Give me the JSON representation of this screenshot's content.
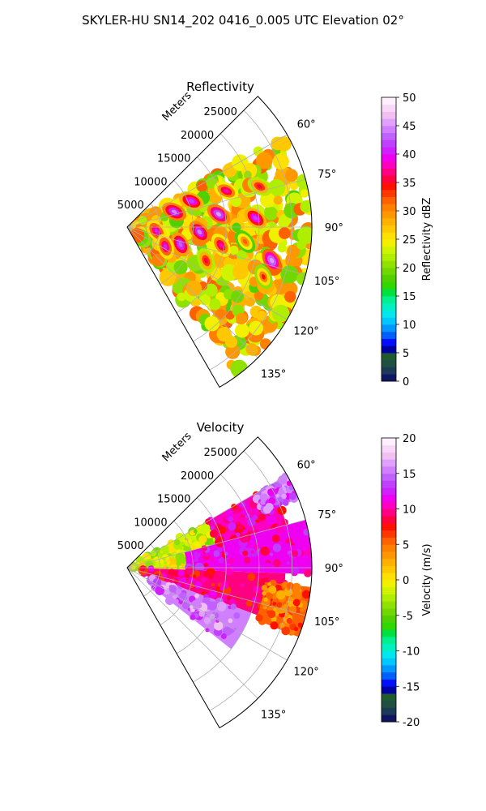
{
  "figure_title": "SKYLER-HU  SN14_202  0416_0.005 UTC Elevation 02°",
  "chart_data": [
    {
      "type": "heatmap",
      "subtype": "radar-ppi-sector",
      "title": "Reflectivity",
      "radial_label": "Meters",
      "radial_ticks": [
        5000,
        10000,
        15000,
        20000,
        25000
      ],
      "range_max": 28000,
      "azimuth_range_deg": [
        45,
        150
      ],
      "azimuth_ticks": [
        "60°",
        "75°",
        "90°",
        "105°",
        "120°",
        "135°"
      ],
      "grid": true,
      "colorbar": {
        "label": "Reflectivity dBZ",
        "min": 0,
        "max": 50,
        "ticks": [
          0,
          5,
          10,
          15,
          20,
          25,
          30,
          35,
          40,
          45,
          50
        ],
        "colors": [
          "#10155f",
          "#1b3a5a",
          "#20503f",
          "#1f5a30",
          "#0000a0",
          "#0010ff",
          "#0060ff",
          "#0098ff",
          "#00c8ff",
          "#00e8ee",
          "#00f0c0",
          "#00f090",
          "#00e040",
          "#30d800",
          "#50d000",
          "#70d800",
          "#90e000",
          "#b0ee00",
          "#d0f400",
          "#f0f000",
          "#ffe000",
          "#ffc800",
          "#ffb000",
          "#ff9800",
          "#ff8000",
          "#ff6000",
          "#ff3800",
          "#ff1000",
          "#ff0040",
          "#ff0080",
          "#ff00c0",
          "#f000f0",
          "#d020ff",
          "#c040ff",
          "#c060ff",
          "#d080ff",
          "#e0a0ff",
          "#f0c0f0",
          "#f8d8f8",
          "#fff0ff"
        ]
      },
      "features": [
        {
          "r": 10500,
          "az": 68,
          "value": 42
        },
        {
          "r": 7500,
          "az": 72,
          "value": 44
        },
        {
          "r": 16000,
          "az": 70,
          "value": 38
        },
        {
          "r": 21000,
          "az": 73,
          "value": 36
        },
        {
          "r": 14000,
          "az": 82,
          "value": 45
        },
        {
          "r": 19500,
          "az": 86,
          "value": 42
        },
        {
          "r": 4500,
          "az": 98,
          "value": 40
        },
        {
          "r": 11000,
          "az": 94,
          "value": 44
        },
        {
          "r": 8500,
          "az": 108,
          "value": 43
        },
        {
          "r": 14500,
          "az": 101,
          "value": 38
        },
        {
          "r": 22500,
          "az": 103,
          "value": 46
        },
        {
          "r": 13000,
          "az": 113,
          "value": 36
        },
        {
          "r": 22000,
          "az": 110,
          "value": 34
        },
        {
          "r": 6500,
          "az": 117,
          "value": 40
        },
        {
          "r": 18000,
          "az": 97,
          "value": 32
        }
      ]
    },
    {
      "type": "heatmap",
      "subtype": "radar-ppi-sector",
      "title": "Velocity",
      "radial_label": "Meters",
      "radial_ticks": [
        5000,
        10000,
        15000,
        20000,
        25000
      ],
      "range_max": 28000,
      "azimuth_range_deg": [
        45,
        150
      ],
      "azimuth_ticks": [
        "60°",
        "75°",
        "90°",
        "105°",
        "120°",
        "135°"
      ],
      "grid": true,
      "colorbar": {
        "label": "Velocity (m/s)",
        "min": -20,
        "max": 20,
        "ticks": [
          -20,
          -15,
          -10,
          -5,
          0,
          5,
          10,
          15,
          20
        ],
        "colors": [
          "#10155f",
          "#1b3a5a",
          "#20503f",
          "#1f5a30",
          "#0000a0",
          "#0010ff",
          "#0060ff",
          "#0098ff",
          "#00c8ff",
          "#00e8ee",
          "#00f0c0",
          "#00f090",
          "#00e040",
          "#30d800",
          "#50d000",
          "#70d800",
          "#90e000",
          "#b0ee00",
          "#d0f400",
          "#f0f000",
          "#ffe000",
          "#ffc800",
          "#ffb000",
          "#ff9800",
          "#ff8000",
          "#ff6000",
          "#ff3800",
          "#ff1000",
          "#ff0040",
          "#ff0080",
          "#ff00c0",
          "#f000f0",
          "#d020ff",
          "#c040ff",
          "#c060ff",
          "#d080ff",
          "#e0a0ff",
          "#f0c0f0",
          "#f8d8f8",
          "#fff0ff"
        ]
      },
      "regions": [
        {
          "az": [
            60,
            78
          ],
          "r": [
            2000,
            14000
          ],
          "value": -2
        },
        {
          "az": [
            75,
            90
          ],
          "r": [
            0,
            9000
          ],
          "value": -1
        },
        {
          "az": [
            60,
            75
          ],
          "r": [
            14000,
            25000
          ],
          "value": 10
        },
        {
          "az": [
            75,
            92
          ],
          "r": [
            9000,
            28000
          ],
          "value": 11
        },
        {
          "az": [
            92,
            110
          ],
          "r": [
            2000,
            24000
          ],
          "value": 9
        },
        {
          "az": [
            110,
            128
          ],
          "r": [
            4000,
            20000
          ],
          "value": 15
        },
        {
          "az": [
            60,
            68
          ],
          "r": [
            22000,
            28000
          ],
          "value": 14
        },
        {
          "az": [
            96,
            112
          ],
          "r": [
            21000,
            28000
          ],
          "value": 5
        }
      ]
    }
  ]
}
